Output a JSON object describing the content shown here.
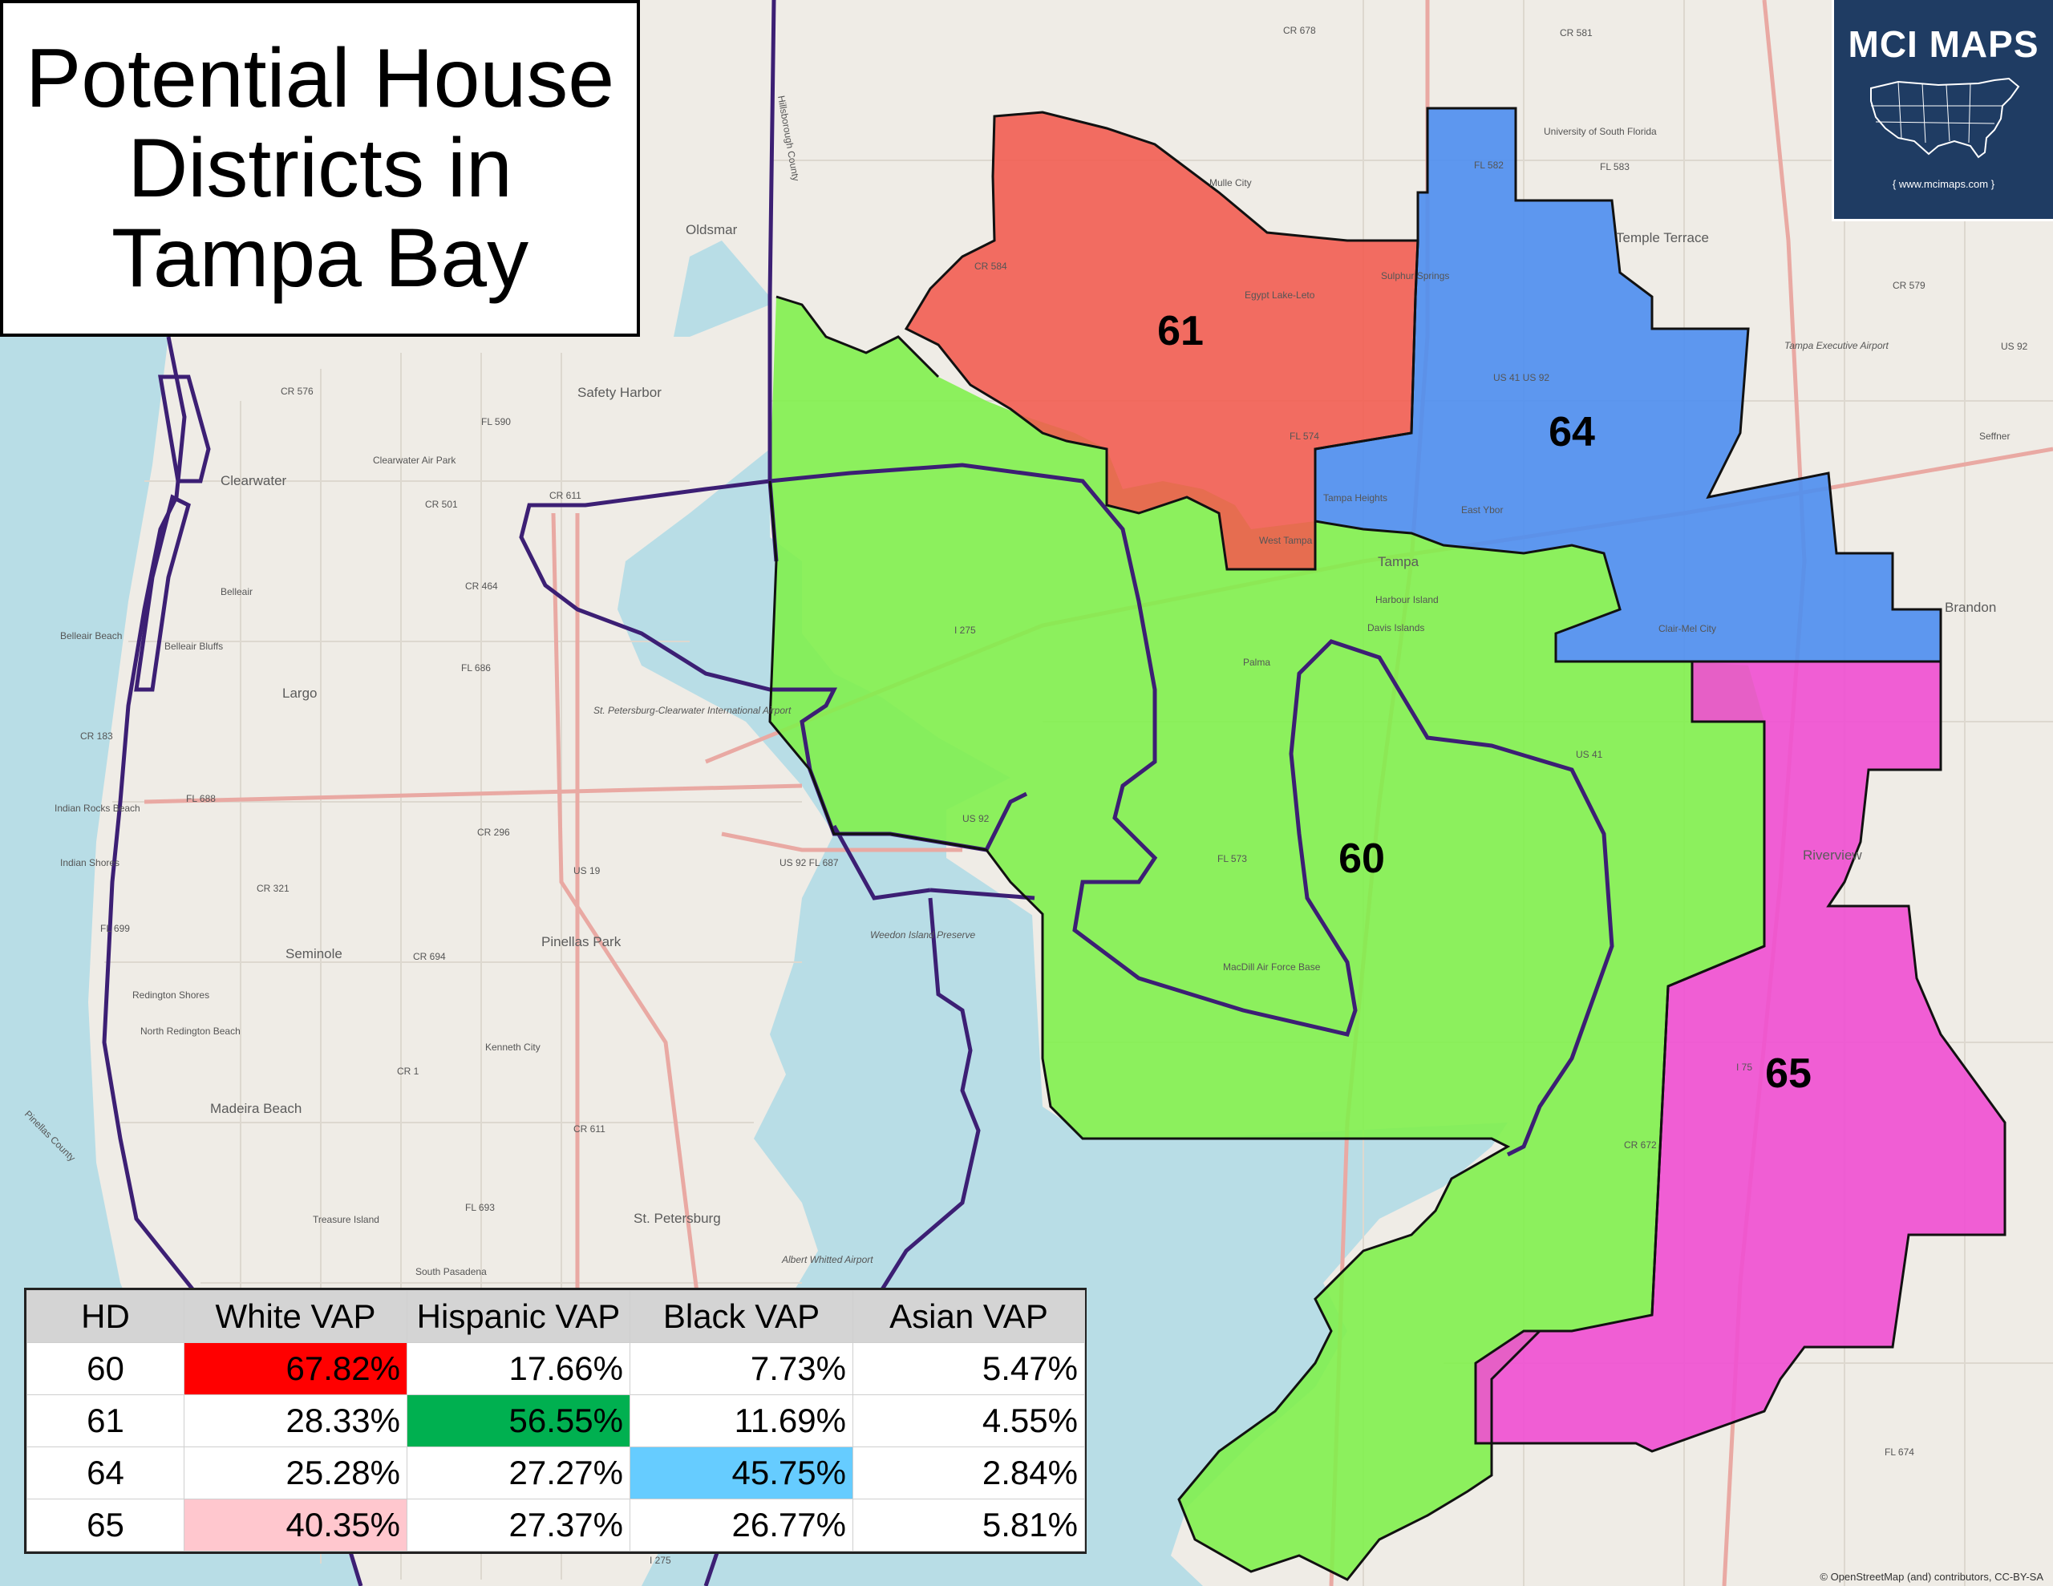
{
  "title": {
    "lines": [
      "Potential House",
      "Districts in",
      "Tampa Bay"
    ]
  },
  "logo": {
    "name": "MCI MAPS",
    "url": "{ www.mcimaps.com }"
  },
  "districts": [
    {
      "number": "61",
      "color": "#f25a4f"
    },
    {
      "number": "64",
      "color": "#4d8ef0"
    },
    {
      "number": "60",
      "color": "#7ef04a"
    },
    {
      "number": "65",
      "color": "#f04fd2"
    }
  ],
  "place_labels": {
    "oldsmar": "Oldsmar",
    "safety_harbor": "Safety Harbor",
    "clearwater": "Clearwater",
    "clearwater_air_park": "Clearwater Air Park",
    "belleair": "Belleair",
    "belleair_beach": "Belleair Beach",
    "belleair_bluffs": "Belleair Bluffs",
    "largo": "Largo",
    "indian_rocks_beach": "Indian Rocks Beach",
    "indian_shores": "Indian Shores",
    "seminole": "Seminole",
    "pinellas_park": "Pinellas Park",
    "redington_shores": "Redington Shores",
    "north_redington_beach": "North Redington Beach",
    "kenneth_city": "Kenneth City",
    "madeira_beach": "Madeira Beach",
    "treasure_island": "Treasure Island",
    "south_pasadena": "South Pasadena",
    "st_petersburg": "St. Petersburg",
    "albert_whitted": "Albert Whitted Airport",
    "st_pete_clearwater_airport": "St. Petersburg-Clearwater International Airport",
    "weedon_island": "Weedon Island Preserve",
    "mullet_city": "Mulle City",
    "egypt_lake": "Egypt Lake-Leto",
    "sulphur_springs": "Sulphur Springs",
    "temple_terrace": "Temple Terrace",
    "usf": "University of South Florida",
    "tampa_executive": "Tampa Executive Airport",
    "seffner": "Seffner",
    "tampa_heights": "Tampa Heights",
    "east_ybor": "East Ybor",
    "west_tampa": "West Tampa",
    "tampa": "Tampa",
    "harbour_island": "Harbour Island",
    "davis_islands": "Davis Islands",
    "palma_ceia": "Palma",
    "clair_mel": "Clair-Mel City",
    "brandon": "Brandon",
    "riverview": "Riverview",
    "macdill": "MacDill Air Force Base",
    "hillsborough_county": "Hillsborough County",
    "pinellas_county": "Pinellas County"
  },
  "road_labels": {
    "cr678": "CR 678",
    "cr581": "CR 581",
    "fl582": "FL 582",
    "fl583": "FL 583",
    "cr579": "CR 579",
    "us92e": "US 92",
    "cr584": "CR 584",
    "fl574": "FL 574",
    "cr576": "CR 576",
    "fl590": "FL 590",
    "cr501": "CR 501",
    "cr611": "CR 611",
    "cr464": "CR 464",
    "fl686": "FL 686",
    "cr183": "CR 183",
    "fl688": "FL 688",
    "cr296": "CR 296",
    "us19": "US 19",
    "cr321": "CR 321",
    "fl699": "FL 699",
    "cr694": "CR 694",
    "cr1": "CR 1",
    "cr611s": "CR 611",
    "fl693": "FL 693",
    "i275": "I 275",
    "us92": "US 92",
    "fl687": "US 92 FL 687",
    "fl573": "FL 573",
    "us41": "US 41",
    "cr672": "CR 672",
    "fl674": "FL 674",
    "i75": "I 75",
    "us41_us92": "US 41 US 92",
    "i275s": "I 275"
  },
  "table": {
    "headers": [
      "HD",
      "White VAP",
      "Hispanic VAP",
      "Black VAP",
      "Asian VAP"
    ],
    "rows": [
      {
        "hd": "60",
        "white": "67.82%",
        "hispanic": "17.66%",
        "black": "7.73%",
        "asian": "5.47%"
      },
      {
        "hd": "61",
        "white": "28.33%",
        "hispanic": "56.55%",
        "black": "11.69%",
        "asian": "4.55%"
      },
      {
        "hd": "64",
        "white": "25.28%",
        "hispanic": "27.27%",
        "black": "45.75%",
        "asian": "2.84%"
      },
      {
        "hd": "65",
        "white": "40.35%",
        "hispanic": "27.37%",
        "black": "26.77%",
        "asian": "5.81%"
      }
    ],
    "highlights": {
      "white_60": "#ff0000",
      "hispanic_61": "#00b050",
      "black_64": "#66ccff",
      "white_65": "#ffc7ce"
    }
  },
  "credit": "© OpenStreetMap (and) contributors, CC-BY-SA"
}
